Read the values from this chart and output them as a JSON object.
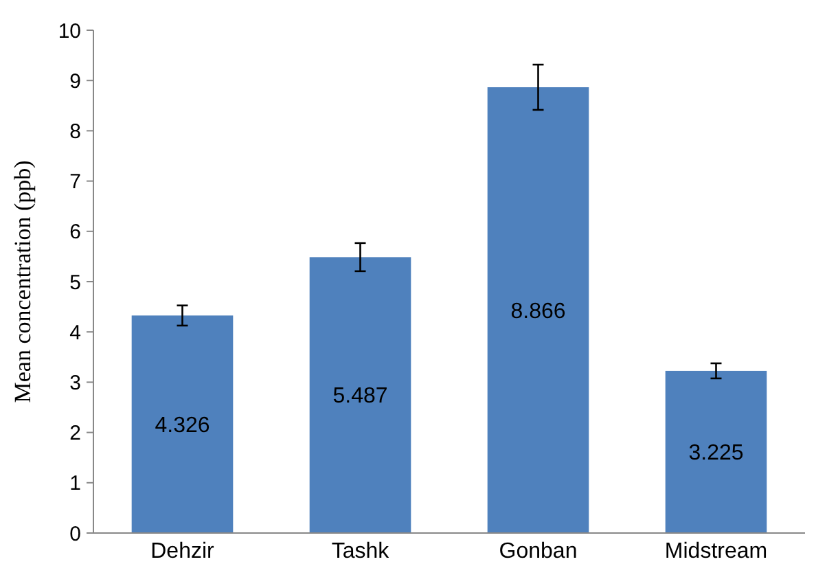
{
  "chart_data": {
    "type": "bar",
    "ylabel": "Mean concentration (ppb)",
    "categories": [
      "Dehzir",
      "Tashk",
      "Gonban",
      "Midstream"
    ],
    "values": [
      4.326,
      5.487,
      8.866,
      3.225
    ],
    "errors": [
      0.2,
      0.28,
      0.45,
      0.15
    ],
    "color": "#4f81bd",
    "ylim": [
      0,
      10
    ],
    "yticks": [
      0,
      1,
      2,
      3,
      4,
      5,
      6,
      7,
      8,
      9,
      10
    ],
    "data_labels": true,
    "grid": false
  }
}
